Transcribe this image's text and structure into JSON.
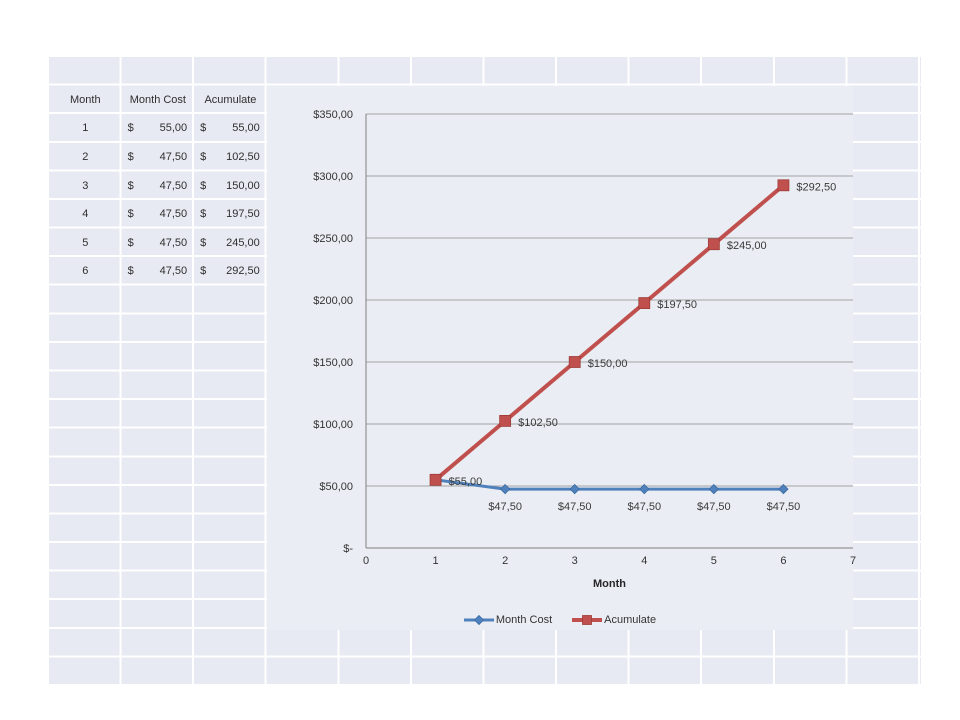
{
  "palette": {
    "page_background": "#ffffff",
    "cell_fill": "#e7eaf2",
    "chart_fill": "#eaedf3",
    "gridline_white": "#ffffff",
    "chart_gridline_gray": "#a3a3a3",
    "axis_gray": "#7f7f7f",
    "series_blue": "#4F81BD",
    "series_red": "#C0504D",
    "text_dark": "#2f2f2f"
  },
  "table": {
    "headers": [
      "Month",
      "Month Cost",
      "Acumulate"
    ],
    "rows": [
      {
        "month": "1",
        "cost_symbol": "$",
        "cost_value": "55,00",
        "acc_symbol": "$",
        "acc_value": "55,00"
      },
      {
        "month": "2",
        "cost_symbol": "$",
        "cost_value": "47,50",
        "acc_symbol": "$",
        "acc_value": "102,50"
      },
      {
        "month": "3",
        "cost_symbol": "$",
        "cost_value": "47,50",
        "acc_symbol": "$",
        "acc_value": "150,00"
      },
      {
        "month": "4",
        "cost_symbol": "$",
        "cost_value": "47,50",
        "acc_symbol": "$",
        "acc_value": "197,50"
      },
      {
        "month": "5",
        "cost_symbol": "$",
        "cost_value": "47,50",
        "acc_symbol": "$",
        "acc_value": "245,00"
      },
      {
        "month": "6",
        "cost_symbol": "$",
        "cost_value": "47,50",
        "acc_symbol": "$",
        "acc_value": "292,50"
      }
    ]
  },
  "chart_data": {
    "type": "line",
    "title": "",
    "xlabel": "Month",
    "ylabel": "",
    "xlim": [
      0,
      7
    ],
    "ylim": [
      0,
      350
    ],
    "grid": "horizontal",
    "legend_position": "bottom",
    "x_ticks": [
      "0",
      "1",
      "2",
      "3",
      "4",
      "5",
      "6",
      "7"
    ],
    "y_ticks": [
      {
        "v": 350,
        "label": "$350,00"
      },
      {
        "v": 300,
        "label": "$300,00"
      },
      {
        "v": 250,
        "label": "$250,00"
      },
      {
        "v": 200,
        "label": "$200,00"
      },
      {
        "v": 150,
        "label": "$150,00"
      },
      {
        "v": 100,
        "label": "$100,00"
      },
      {
        "v": 50,
        "label": "$50,00"
      },
      {
        "v": 0,
        "label": "$-"
      }
    ],
    "x": [
      1,
      2,
      3,
      4,
      5,
      6
    ],
    "series": [
      {
        "name": "Month Cost",
        "color": "#4F81BD",
        "marker": "diamond",
        "line_width": 3,
        "values": [
          55,
          47.5,
          47.5,
          47.5,
          47.5,
          47.5
        ],
        "labels": [
          null,
          "$47,50",
          "$47,50",
          "$47,50",
          "$47,50",
          "$47,50"
        ],
        "label_position": "below"
      },
      {
        "name": "Acumulate",
        "color": "#C0504D",
        "marker": "square",
        "line_width": 4,
        "values": [
          55,
          102.5,
          150,
          197.5,
          245,
          292.5
        ],
        "labels": [
          "$55,00",
          "$102,50",
          "$150,00",
          "$197,50",
          "$245,00",
          "$292,50"
        ],
        "label_position": "right"
      }
    ]
  }
}
